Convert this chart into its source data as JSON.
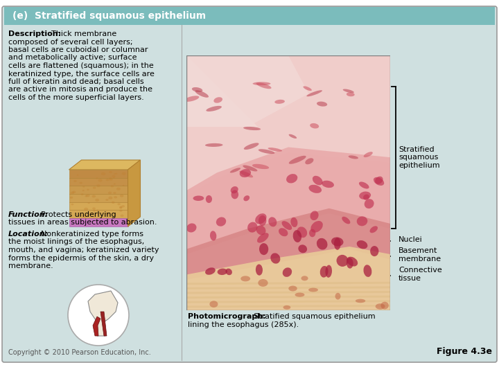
{
  "title": "(e)  Stratified squamous epithelium",
  "title_bg": "#7bbcbc",
  "title_color": "white",
  "body_bg": "#cfe0e0",
  "panel_bg": "#d8e8e8",
  "right_bg": "#ddeaea",
  "outer_bg": "#ffffff",
  "description_bold": "Description:",
  "description_text": "Thick membrane\ncomposed of several cell layers;\nbasal cells are cuboidal or columnar\nand metabolically active; surface\ncells are flattened (squamous); in the\nkeratinized type, the surface cells are\nfull of keratin and dead; basal cells\nare active in mitosis and produce the\ncells of the more superficial layers.",
  "function_bold": "Function:",
  "function_text": "Protects underlying\ntissues in areas subjected to abrasion.",
  "location_bold": "Location:",
  "location_text": "Nonkeratinized type forms\nthe moist linings of the esophagus,\nmouth, and vagina; keratinized variety\nforms the epidermis of the skin, a dry\nmembrane.",
  "photomicrograph_bold": "Photomicrograph:",
  "photomicrograph_text": "Stratified squamous epithelium\nlining the esophagus (285x).",
  "labels": [
    "Stratified\nsquamous\nepithelium",
    "Nuclei",
    "Basement\nmembrane",
    "Connective\ntissue"
  ],
  "copyright": "Copyright © 2010 Pearson Education, Inc.",
  "figure": "Figure 4.3e",
  "text_color": "#000000",
  "label_fontsize": 8,
  "desc_fontsize": 8,
  "title_fontsize": 10
}
